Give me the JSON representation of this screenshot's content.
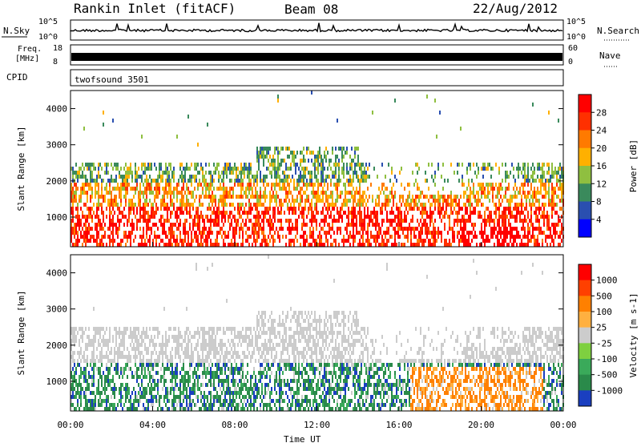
{
  "header": {
    "title": "Rankin Inlet (fitACF)",
    "beam": "Beam 08",
    "date": "22/Aug/2012"
  },
  "strips": {
    "nsky_label": "N.Sky",
    "nsky_ticks": [
      "10^5",
      "10^0"
    ],
    "nsearch_label": "N.Search",
    "nsearch_ticks": [
      "10^5",
      "10^0"
    ],
    "freq_label_1": "Freq.",
    "freq_label_2": "[MHz]",
    "freq_ticks": [
      "18",
      "8"
    ],
    "nave_label": "Nave",
    "nave_ticks": [
      "60",
      "0"
    ],
    "cpid_label": "CPID",
    "cpid_value": "twofsound 3501"
  },
  "chart_data": [
    {
      "type": "heatmap",
      "name": "power",
      "ylabel": "Slant Range [km]",
      "xlabel": "Time UT",
      "x_ticks": [
        "00:00",
        "04:00",
        "08:00",
        "12:00",
        "16:00",
        "20:00",
        "00:00"
      ],
      "y_ticks": [
        1000,
        2000,
        3000,
        4000
      ],
      "ylim": [
        180,
        4500
      ],
      "xlim_hours": [
        0,
        24
      ],
      "colorbar_label": "Power [dB]",
      "colorbar_ticks": [
        "4",
        "8",
        "12",
        "16",
        "20",
        "24",
        "28"
      ],
      "colors": [
        "#0000ff",
        "#2a4fb0",
        "#3a8a5c",
        "#8fbf40",
        "#ffb000",
        "#ff7a00",
        "#ff3000",
        "#ff0000"
      ]
    },
    {
      "type": "heatmap",
      "name": "velocity",
      "ylabel": "Slant Range [km]",
      "xlabel": "Time UT",
      "x_ticks": [
        "00:00",
        "04:00",
        "08:00",
        "12:00",
        "16:00",
        "20:00",
        "00:00"
      ],
      "y_ticks": [
        1000,
        2000,
        3000,
        4000
      ],
      "ylim": [
        180,
        4500
      ],
      "xlim_hours": [
        0,
        24
      ],
      "colorbar_label": "Velocity [m s-1]",
      "colorbar_ticks": [
        "1000",
        "500",
        "100",
        "25",
        "-25",
        "-100",
        "-500",
        "-1000"
      ],
      "colors": [
        "#1a3fc0",
        "#2a8a4a",
        "#3aaa5a",
        "#7ed040",
        "#cccccc",
        "#ffb040",
        "#ff8000",
        "#ff4000",
        "#ff0000"
      ]
    }
  ]
}
